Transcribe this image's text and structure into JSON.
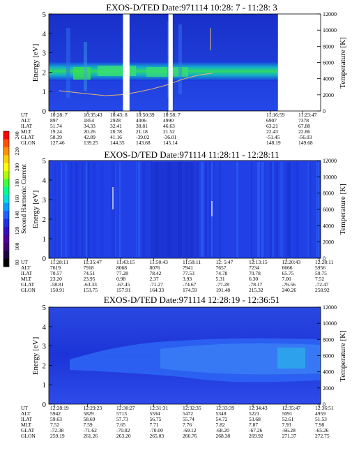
{
  "figure": {
    "colorbar": {
      "label": "Second Harmonic Current",
      "ticks": [
        "240",
        "220",
        "200",
        "180",
        "160",
        "140",
        "120",
        "100",
        "80"
      ]
    }
  },
  "chart_data": [
    {
      "type": "heatmap",
      "title": "EXOS-D/TED    Date:971114   10:28: 7 - 11:28: 3",
      "ylabel": "Energy [eV]",
      "y2label": "Temperature [K]",
      "ylim": [
        0,
        5
      ],
      "y2lim": [
        0,
        12000
      ],
      "yticks": [
        "0",
        "1",
        "2",
        "3",
        "4",
        "5"
      ],
      "y2ticks": [
        "0",
        "2000",
        "4000",
        "6000",
        "8000",
        "10000",
        "12000"
      ],
      "data_gaps_fraction": [
        [
          0.273,
          0.297
        ],
        [
          0.44,
          0.456
        ],
        [
          0.843,
          1.0
        ]
      ],
      "band": {
        "center_eV": 2.0,
        "halfwidth_eV": 0.45
      },
      "temperature_line_K": [
        2500,
        2300,
        2100,
        1900,
        2000,
        2300,
        2700,
        3200,
        3900,
        4400,
        4700
      ],
      "orbit_labels": [
        "UT",
        "ALT",
        "ILAT",
        "MLT",
        "GLAT",
        "GLON"
      ],
      "orbit_columns": [
        [
          "10:28: 7",
          "897",
          "51.74",
          "19.24",
          "58.39",
          "127.46"
        ],
        [
          "10:35:43",
          "1854",
          "34.33",
          "20.26",
          "42.89",
          "139.25"
        ],
        [
          "10:43: 8",
          "2928",
          "32.41",
          "20.78",
          "41.16",
          "144.35"
        ],
        [
          "10:50:39",
          "4006",
          "38.81",
          "21.18",
          "-39.02",
          "143.68"
        ],
        [
          "10:58: 7",
          "4990",
          "46.63",
          "21.52",
          "-36.01",
          "145.14"
        ],
        [
          "11:16:59",
          "6907",
          "63.21",
          "22.43",
          "-51.45",
          "148.19"
        ],
        [
          "11:23:47",
          "7378",
          "67.88",
          "22.86",
          "-56.03",
          "149.68"
        ]
      ]
    },
    {
      "type": "heatmap",
      "title": "EXOS-D/TED    Date:971114   11:28:11 - 12:28:11",
      "ylabel": "Energy [eV]",
      "y2label": "Temperature [K]",
      "ylim": [
        0,
        5
      ],
      "y2lim": [
        0,
        12000
      ],
      "yticks": [
        "0",
        "1",
        "2",
        "3",
        "4",
        "5"
      ],
      "y2ticks": [
        "0",
        "2000",
        "4000",
        "6000",
        "8000",
        "10000",
        "12000"
      ],
      "orbit_labels": [
        "UT",
        "ALT",
        "ILAT",
        "MLT",
        "GLAT",
        "GLON"
      ],
      "orbit_columns": [
        [
          "11:28:11",
          "7619",
          "70.57",
          "23.20",
          "-58.81",
          "150.91"
        ],
        [
          "11:35:47",
          "7918",
          "74.51",
          "23.95",
          "-63.33",
          "153.75"
        ],
        [
          "11:43:15",
          "8068",
          "77.28",
          "0.98",
          "-67.45",
          "157.91"
        ],
        [
          "11:50:43",
          "8076",
          "78.42",
          "2.37",
          "-71.27",
          "164.33"
        ],
        [
          "11:58:11",
          "7941",
          "77.53",
          "3.93",
          "-74.67",
          "174.59"
        ],
        [
          "12: 5:47",
          "7657",
          "74.78",
          "5.31",
          "-77.28",
          "191.48"
        ],
        [
          "12:13:15",
          "7234",
          "70.78",
          "6.30",
          "-78.17",
          "215.32"
        ],
        [
          "12:20:43",
          "6666",
          "65.75",
          "7.00",
          "-76.56",
          "240.26"
        ],
        [
          "12:28:11",
          "5956",
          "59.75",
          "7.52",
          "-72.47",
          "258.92"
        ]
      ]
    },
    {
      "type": "heatmap",
      "title": "EXOS-D/TED    Date:971114   12:28:19 - 12:36:51",
      "ylabel": "Energy [eV]",
      "y2label": "Temperature [K]",
      "ylim": [
        0,
        5
      ],
      "y2lim": [
        0,
        12000
      ],
      "yticks": [
        "0",
        "1",
        "2",
        "3",
        "4",
        "5"
      ],
      "y2ticks": [
        "0",
        "2000",
        "4000",
        "6000",
        "8000",
        "10000",
        "12000"
      ],
      "orbit_labels": [
        "UT",
        "ALT",
        "ILAT",
        "MLT",
        "GLAT",
        "GLON"
      ],
      "orbit_columns": [
        [
          "12:28:19",
          "5942",
          "59.63",
          "7.52",
          "-72.38",
          "259.19"
        ],
        [
          "12:29:23",
          "5829",
          "58.69",
          "7.59",
          "-71.62",
          "261.26"
        ],
        [
          "12:30:27",
          "5713",
          "57.73",
          "7.65",
          "-70.82",
          "263.20"
        ],
        [
          "12:31:31",
          "5594",
          "56.75",
          "7.71",
          "-70.00",
          "265.03"
        ],
        [
          "12:32:35",
          "5472",
          "55.74",
          "7.76",
          "-69.12",
          "266.76"
        ],
        [
          "12:33:39",
          "5348",
          "54.72",
          "7.82",
          "-68.20",
          "268.38"
        ],
        [
          "12:34:43",
          "5221",
          "53.68",
          "7.87",
          "-67.26",
          "269.92"
        ],
        [
          "12:35:47",
          "5091",
          "52.61",
          "7.93",
          "-66.28",
          "271.37"
        ],
        [
          "12:36:51",
          "4959",
          "51.53",
          "7.98",
          "-65.26",
          "272.75"
        ]
      ]
    }
  ]
}
